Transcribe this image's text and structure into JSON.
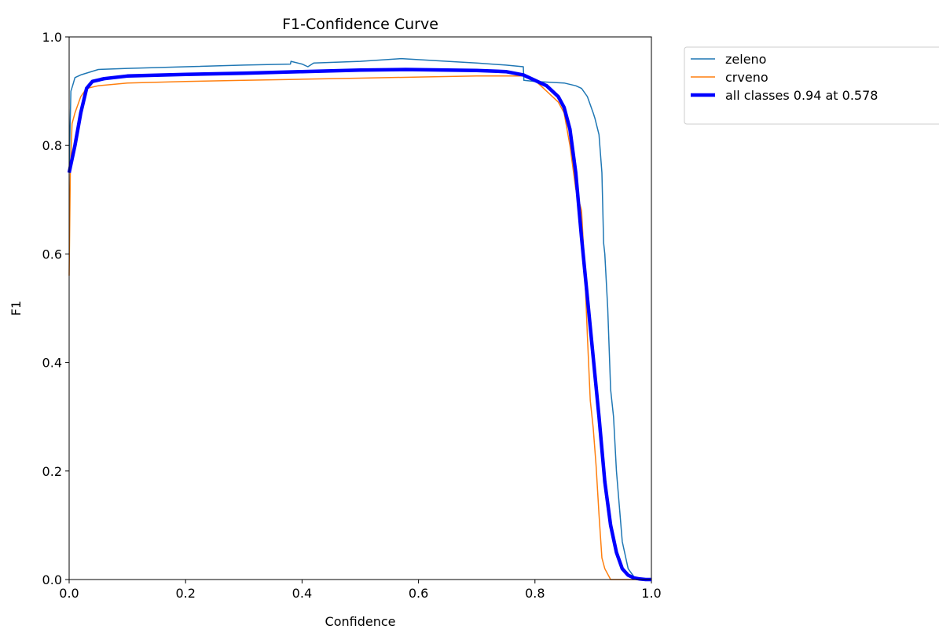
{
  "chart_data": {
    "type": "line",
    "title": "F1-Confidence Curve",
    "xlabel": "Confidence",
    "ylabel": "F1",
    "xlim": [
      0,
      1
    ],
    "ylim": [
      0,
      1
    ],
    "xticks": [
      "0.0",
      "0.2",
      "0.4",
      "0.6",
      "0.8",
      "1.0"
    ],
    "yticks": [
      "0.0",
      "0.2",
      "0.4",
      "0.6",
      "0.8",
      "1.0"
    ],
    "grid": false,
    "legend_position": "outside-top-right",
    "series": [
      {
        "name": "zeleno",
        "color": "#1f77b4",
        "width": 1.5,
        "x": [
          0.0,
          0.003,
          0.006,
          0.01,
          0.02,
          0.05,
          0.1,
          0.2,
          0.3,
          0.38,
          0.381,
          0.4,
          0.41,
          0.42,
          0.5,
          0.57,
          0.65,
          0.7,
          0.75,
          0.78,
          0.781,
          0.8,
          0.85,
          0.87,
          0.88,
          0.89,
          0.9,
          0.903,
          0.91,
          0.915,
          0.918,
          0.92,
          0.925,
          0.93,
          0.935,
          0.94,
          0.95,
          0.96,
          0.97,
          0.98,
          1.0
        ],
        "y": [
          0.75,
          0.9,
          0.91,
          0.925,
          0.93,
          0.94,
          0.942,
          0.945,
          0.948,
          0.95,
          0.955,
          0.95,
          0.945,
          0.952,
          0.955,
          0.96,
          0.955,
          0.952,
          0.948,
          0.945,
          0.92,
          0.918,
          0.915,
          0.91,
          0.905,
          0.89,
          0.86,
          0.85,
          0.82,
          0.75,
          0.62,
          0.6,
          0.5,
          0.35,
          0.3,
          0.2,
          0.07,
          0.02,
          0.005,
          0.0,
          0.0
        ]
      },
      {
        "name": "crveno",
        "color": "#ff7f0e",
        "width": 1.5,
        "x": [
          0.0,
          0.002,
          0.005,
          0.01,
          0.02,
          0.03,
          0.05,
          0.1,
          0.2,
          0.3,
          0.4,
          0.5,
          0.6,
          0.7,
          0.78,
          0.8,
          0.82,
          0.83,
          0.84,
          0.85,
          0.86,
          0.87,
          0.88,
          0.885,
          0.89,
          0.895,
          0.9,
          0.905,
          0.91,
          0.915,
          0.92,
          0.93,
          0.95,
          1.0
        ],
        "y": [
          0.56,
          0.75,
          0.84,
          0.86,
          0.89,
          0.905,
          0.91,
          0.915,
          0.918,
          0.92,
          0.922,
          0.924,
          0.926,
          0.928,
          0.928,
          0.92,
          0.9,
          0.89,
          0.88,
          0.86,
          0.8,
          0.72,
          0.68,
          0.58,
          0.45,
          0.33,
          0.28,
          0.21,
          0.12,
          0.04,
          0.02,
          0.0,
          0.0,
          0.0
        ]
      },
      {
        "name": "all classes 0.94 at 0.578",
        "color": "#0000ff",
        "width": 4.5,
        "x": [
          0.0,
          0.01,
          0.02,
          0.03,
          0.04,
          0.06,
          0.1,
          0.2,
          0.3,
          0.4,
          0.5,
          0.578,
          0.65,
          0.7,
          0.75,
          0.78,
          0.8,
          0.82,
          0.84,
          0.85,
          0.86,
          0.87,
          0.88,
          0.89,
          0.9,
          0.91,
          0.92,
          0.93,
          0.94,
          0.95,
          0.96,
          0.97,
          0.98,
          0.99,
          1.0
        ],
        "y": [
          0.75,
          0.8,
          0.86,
          0.905,
          0.918,
          0.923,
          0.928,
          0.931,
          0.933,
          0.936,
          0.939,
          0.94,
          0.939,
          0.938,
          0.936,
          0.93,
          0.92,
          0.91,
          0.89,
          0.87,
          0.83,
          0.75,
          0.63,
          0.52,
          0.41,
          0.3,
          0.18,
          0.1,
          0.05,
          0.02,
          0.008,
          0.003,
          0.001,
          0.0,
          0.0
        ]
      }
    ]
  }
}
